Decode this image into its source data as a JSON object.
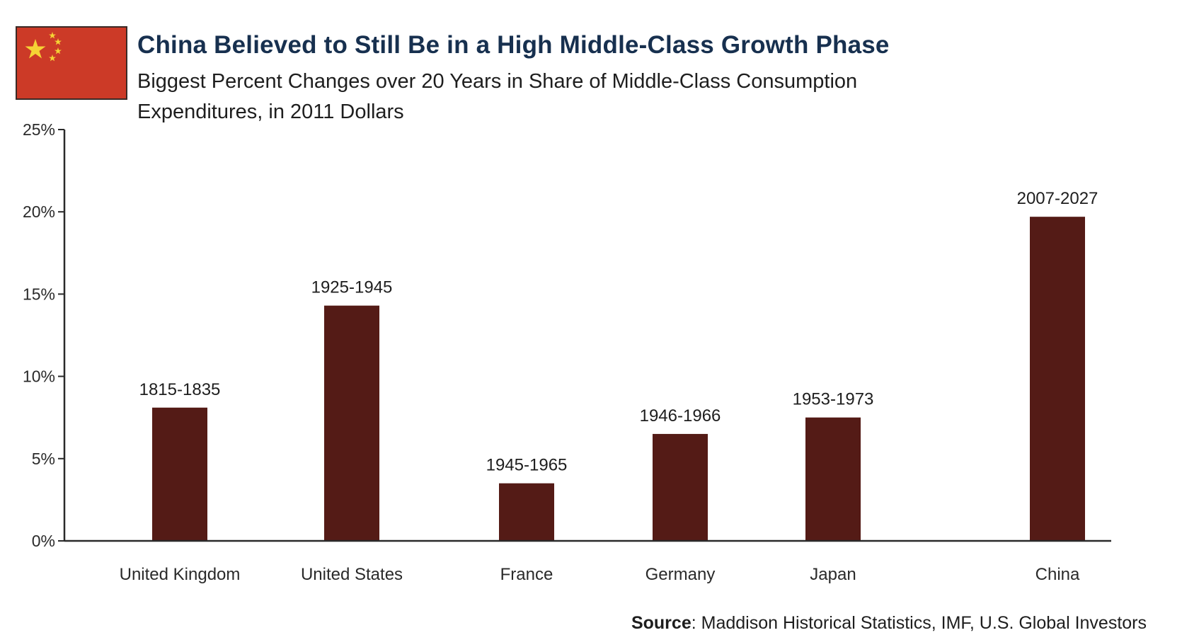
{
  "header": {
    "flag_icon": "china-flag-icon",
    "title": "China Believed to Still Be in a High Middle-Class Growth Phase",
    "subtitle": "Biggest Percent Changes over 20 Years in Share of Middle-Class Consumption Expenditures, in 2011 Dollars"
  },
  "source": {
    "label": "Source",
    "text": ": Maddison Historical Statistics, IMF, U.S. Global Investors"
  },
  "colors": {
    "bar": "#541b16",
    "axis": "#2a2a2a",
    "title": "#17304f",
    "flag_red": "#cc3a27",
    "flag_star": "#f5d335"
  },
  "chart_data": {
    "type": "bar",
    "title": "China Believed to Still Be in a High Middle-Class Growth Phase",
    "subtitle": "Biggest Percent Changes over 20 Years in Share of Middle-Class Consumption Expenditures, in 2011 Dollars",
    "xlabel": "",
    "ylabel": "",
    "categories": [
      "United Kingdom",
      "United States",
      "France",
      "Germany",
      "Japan",
      "China"
    ],
    "values": [
      8.1,
      14.3,
      3.5,
      6.5,
      7.5,
      19.7
    ],
    "bar_labels": [
      "1815-1835",
      "1925-1945",
      "1945-1965",
      "1946-1966",
      "1953-1973",
      "2007-2027"
    ],
    "ylim": [
      0,
      25
    ],
    "yticks": [
      0,
      5,
      10,
      15,
      20,
      25
    ],
    "ytick_labels": [
      "0%",
      "5%",
      "10%",
      "15%",
      "20%",
      "25%"
    ],
    "grid": false,
    "legend": "none"
  }
}
